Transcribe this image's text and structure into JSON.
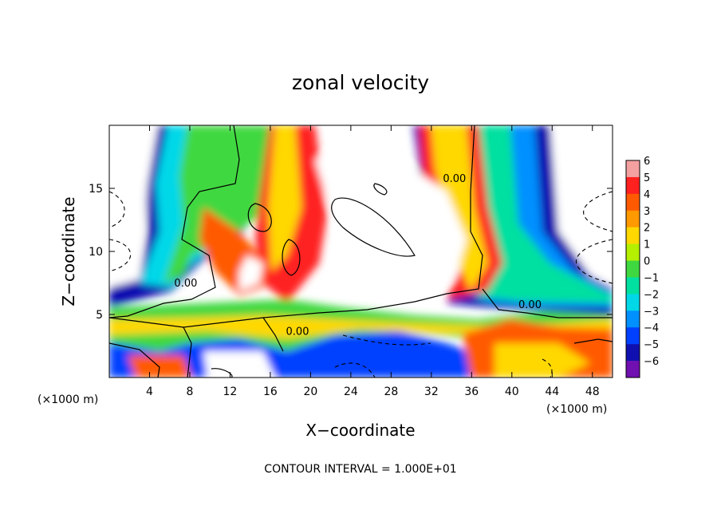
{
  "chart_data": {
    "type": "heatmap",
    "title": "zonal velocity",
    "xlabel": "X−coordinate",
    "ylabel": "Z−coordinate",
    "x_unit_left": "(×1000 m)",
    "x_unit_right": "(×1000 m)",
    "xlim": [
      0,
      50
    ],
    "ylim": [
      0,
      20
    ],
    "x_ticks": [
      4,
      8,
      12,
      16,
      20,
      24,
      28,
      32,
      36,
      40,
      44,
      48
    ],
    "y_ticks": [
      5,
      10,
      15
    ],
    "colorbar": {
      "levels": [
        6,
        5,
        4,
        3,
        2,
        1,
        0,
        -1,
        -2,
        -3,
        -4,
        -5,
        -6
      ],
      "level_labels": [
        "6",
        "5",
        "4",
        "3",
        "2",
        "1",
        "0",
        "−1",
        "−2",
        "−3",
        "−4",
        "−5",
        "−6"
      ],
      "colors": [
        "#f4a0a0",
        "#ff2020",
        "#ff5a00",
        "#ff9900",
        "#ffd800",
        "#b4f000",
        "#40d840",
        "#00e0a0",
        "#00d8e8",
        "#0090ff",
        "#0040ff",
        "#1010b0",
        "#7010b0"
      ]
    },
    "contour_labels": [
      {
        "text": "0.00",
        "x": 34.3,
        "z": 15.5
      },
      {
        "text": "0.00",
        "x": 7.6,
        "z": 7.2
      },
      {
        "text": "0.00",
        "x": 18.7,
        "z": 3.4
      },
      {
        "text": "0.00",
        "x": 41.8,
        "z": 5.5
      }
    ],
    "footer": "CONTOUR INTERVAL = 1.000E+01"
  }
}
